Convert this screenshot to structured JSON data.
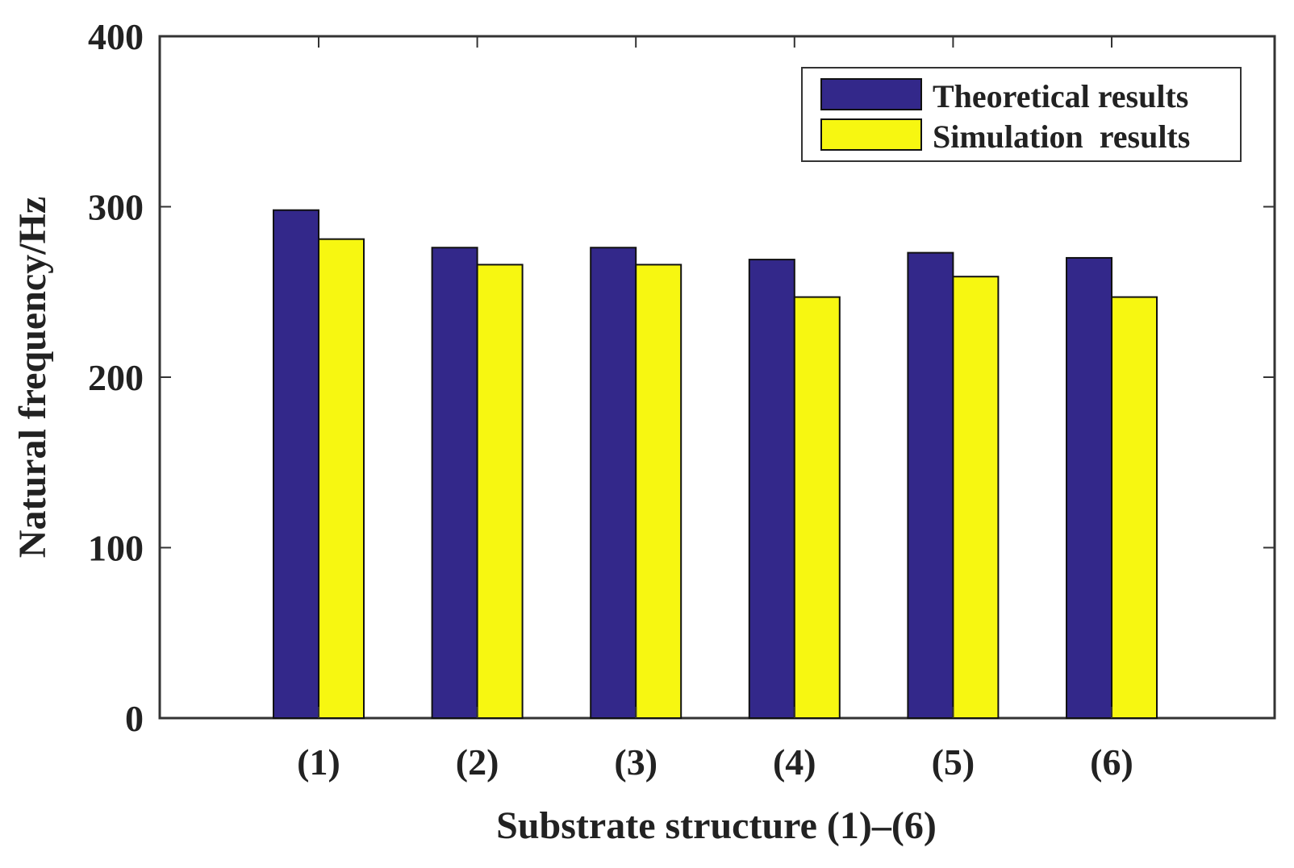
{
  "chart_data": {
    "type": "bar",
    "title": "",
    "xlabel": "Substrate structure (1)–(6)",
    "ylabel": "Natural frequency/Hz",
    "categories": [
      "(1)",
      "(2)",
      "(3)",
      "(4)",
      "(5)",
      "(6)"
    ],
    "series": [
      {
        "name": "Theoretical results",
        "color": "#33288a",
        "values": [
          298,
          276,
          276,
          269,
          273,
          270
        ]
      },
      {
        "name": "Simulation  results",
        "color": "#f7f711",
        "values": [
          281,
          266,
          266,
          247,
          259,
          247
        ]
      }
    ],
    "ylim": [
      0,
      400
    ],
    "yticks": [
      0,
      100,
      200,
      300,
      400
    ],
    "grid": false,
    "legend_position": "top-right"
  }
}
